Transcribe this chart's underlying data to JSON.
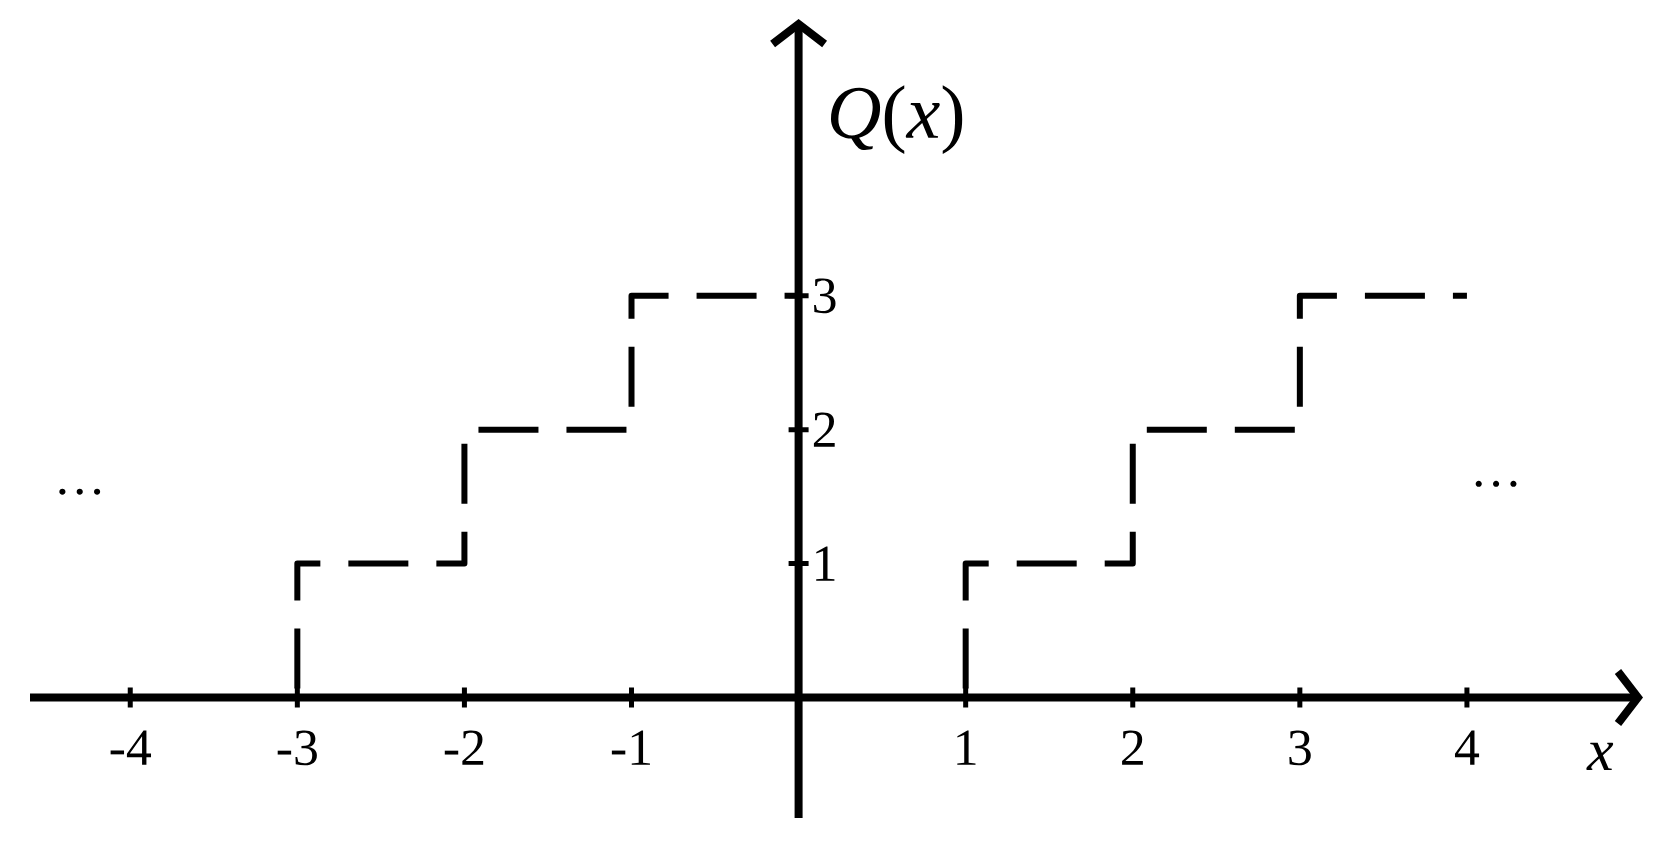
{
  "chart_data": {
    "type": "step",
    "ylabel": "*Q*(*x*)",
    "xlabel": "x",
    "annotations": [
      "…",
      "…"
    ],
    "series": [
      {
        "color": "#000000",
        "x": [
          -4,
          -3,
          -2,
          -1,
          0
        ],
        "values": [
          0,
          1,
          2,
          3,
          3
        ]
      },
      {
        "color": "#000000",
        "x": [
          0,
          1,
          2,
          3,
          4
        ],
        "values": [
          0,
          1,
          2,
          3,
          3
        ]
      }
    ],
    "xlim": [
      -4.6,
      5
    ],
    "ylim": [
      -0.9,
      5
    ],
    "xticks": [
      -4,
      -3,
      -2,
      -1,
      1,
      2,
      3,
      4
    ],
    "yticks": [
      1,
      2,
      3
    ],
    "line_style": "dashed"
  }
}
